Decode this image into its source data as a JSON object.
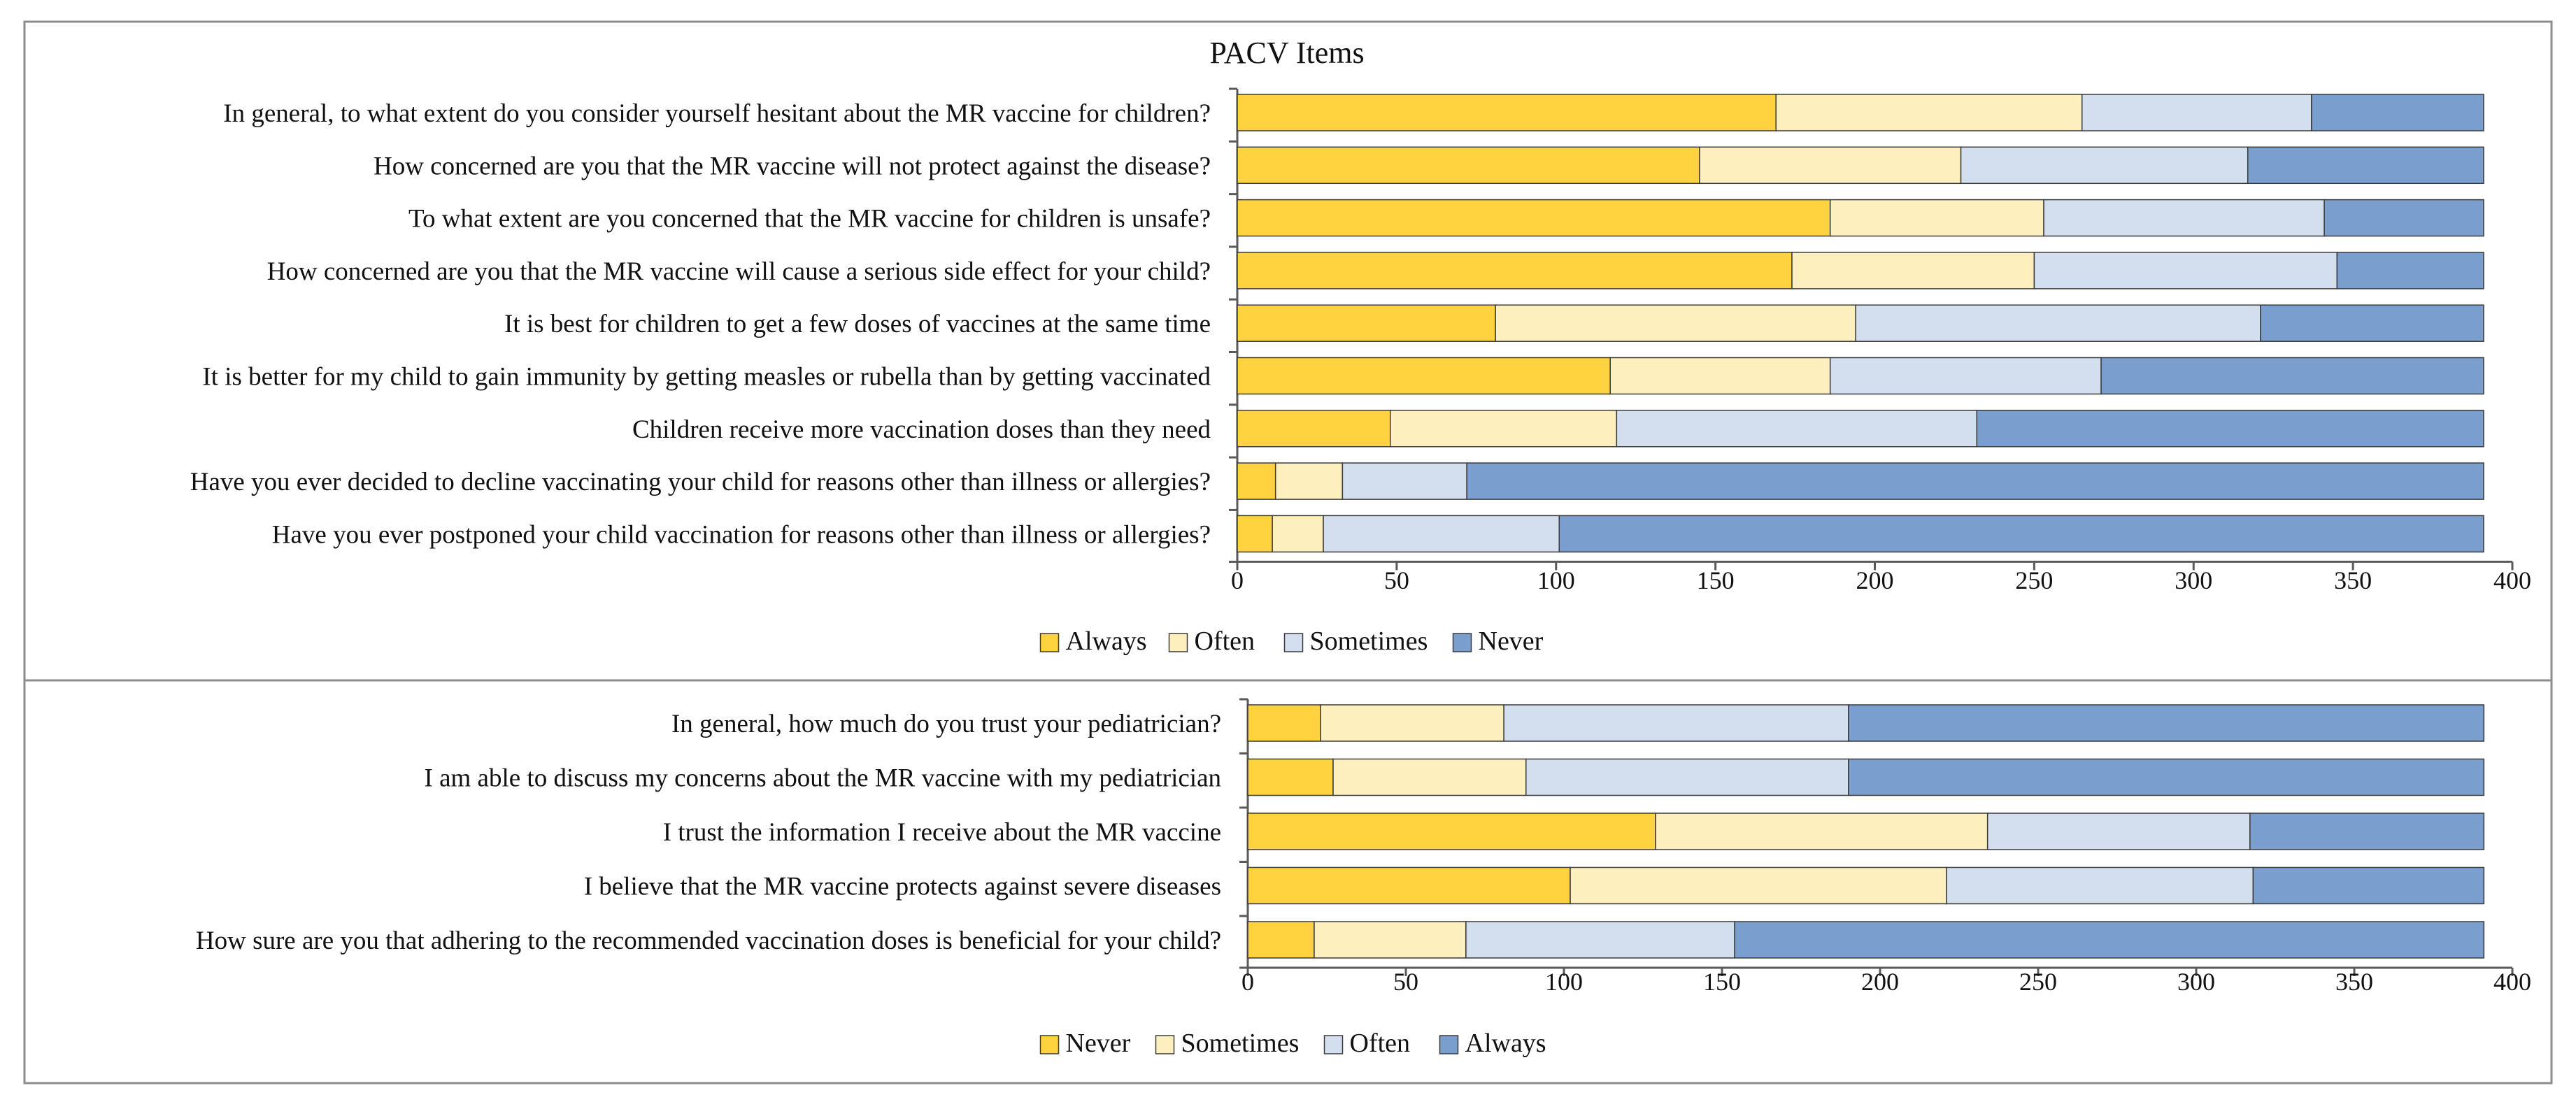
{
  "colors": {
    "always": "#FFD23F",
    "often": "#FEF0BE",
    "sometimes": "#D3DEEE",
    "never": "#7A9FCE",
    "bar_stroke": "#3A3A3A",
    "axis": "#5A5A5A",
    "frame": "#8C8C8C"
  },
  "chart_data": [
    {
      "type": "bar",
      "orientation": "horizontal",
      "stacked": true,
      "title": "PACV Items",
      "xlim": [
        0,
        400
      ],
      "xticks": [
        0,
        50,
        100,
        150,
        200,
        250,
        300,
        350,
        400
      ],
      "legend_position": "bottom-center",
      "categories": [
        "In general, to what extent do you consider yourself hesitant about the MR vaccine for children?",
        "How concerned are you that the MR vaccine will not protect against the disease?",
        "To what extent are you concerned that the MR vaccine for children is unsafe?",
        "How concerned are you that the MR vaccine will cause a serious side effect for your child?",
        "It is best for children to get a few doses of vaccines at the same time",
        "It is better for my child to gain immunity by getting measles or rubella than by getting vaccinated",
        "Children receive more vaccination doses than they need",
        "Have you ever decided to decline vaccinating your child for reasons other than illness or allergies?",
        "Have you ever postponed your child vaccination for reasons other than illness or allergies?"
      ],
      "series": [
        {
          "name": "Always",
          "color_key": "always",
          "values": [
            169,
            145,
            186,
            174,
            81,
            117,
            48,
            12,
            11
          ]
        },
        {
          "name": "Often",
          "color_key": "often",
          "values": [
            96,
            82,
            67,
            76,
            113,
            69,
            71,
            21,
            16
          ]
        },
        {
          "name": "Sometimes",
          "color_key": "sometimes",
          "values": [
            72,
            90,
            88,
            95,
            127,
            85,
            113,
            39,
            74
          ]
        },
        {
          "name": "Never",
          "color_key": "never",
          "values": [
            54,
            74,
            50,
            46,
            70,
            120,
            159,
            319,
            290
          ]
        }
      ]
    },
    {
      "type": "bar",
      "orientation": "horizontal",
      "stacked": true,
      "title": "",
      "xlim": [
        0,
        400
      ],
      "xticks": [
        0,
        50,
        100,
        150,
        200,
        250,
        300,
        350,
        400
      ],
      "legend_position": "bottom-center",
      "categories": [
        "In general, how much do you trust your pediatrician?",
        "I am able to discuss my concerns about the MR vaccine with my pediatrician",
        "I trust the information I receive about the MR vaccine",
        "I believe that the MR vaccine protects against severe diseases",
        "How sure are you that adhering to the recommended vaccination doses is beneficial for your child?"
      ],
      "series": [
        {
          "name": "Never",
          "color_key": "always",
          "values": [
            23,
            27,
            129,
            102,
            21
          ]
        },
        {
          "name": "Sometimes",
          "color_key": "often",
          "values": [
            58,
            61,
            105,
            119,
            48
          ]
        },
        {
          "name": "Often",
          "color_key": "sometimes",
          "values": [
            109,
            102,
            83,
            97,
            85
          ]
        },
        {
          "name": "Always",
          "color_key": "never",
          "values": [
            201,
            201,
            74,
            73,
            237
          ]
        }
      ]
    }
  ]
}
